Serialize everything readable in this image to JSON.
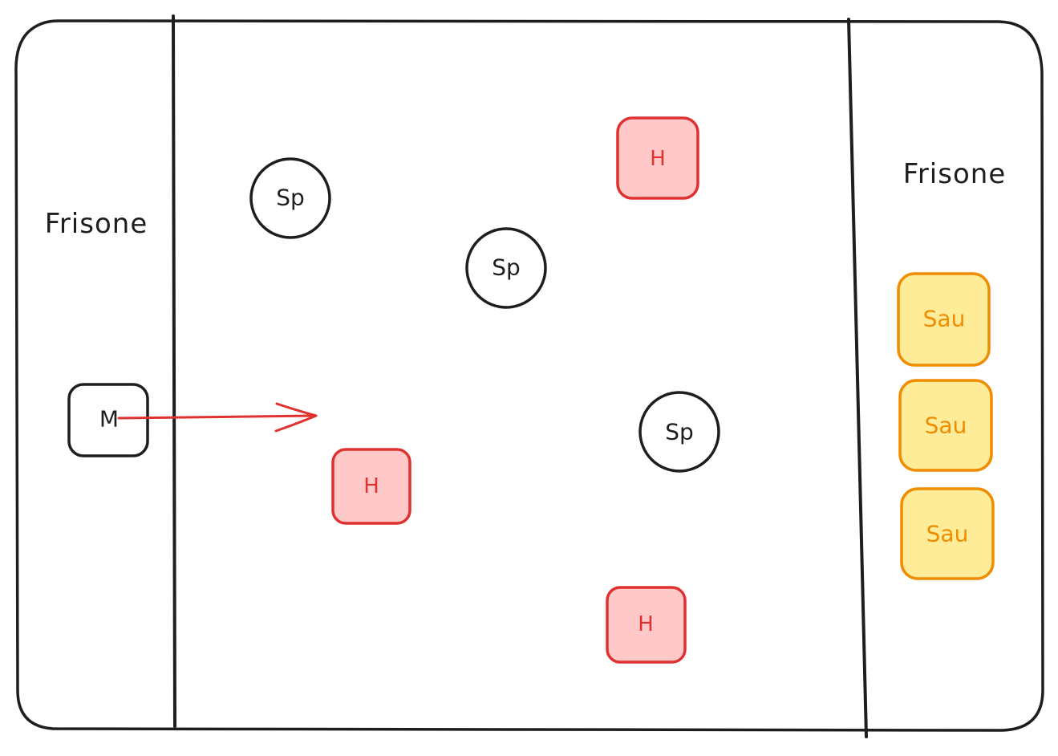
{
  "zones": {
    "left_label": "Frisone",
    "right_label": "Frisone"
  },
  "colors": {
    "stroke": "#1e1e1e",
    "h_stroke": "#e03131",
    "h_fill": "#ffc9c9",
    "sau_stroke": "#f08c00",
    "sau_fill": "#ffec99",
    "arrow": "#e03131"
  },
  "nodes": {
    "m": {
      "label": "M"
    },
    "sp": [
      {
        "label": "Sp"
      },
      {
        "label": "Sp"
      },
      {
        "label": "Sp"
      }
    ],
    "h": [
      {
        "label": "H"
      },
      {
        "label": "H"
      },
      {
        "label": "H"
      }
    ],
    "sau": [
      {
        "label": "Sau"
      },
      {
        "label": "Sau"
      },
      {
        "label": "Sau"
      }
    ]
  }
}
